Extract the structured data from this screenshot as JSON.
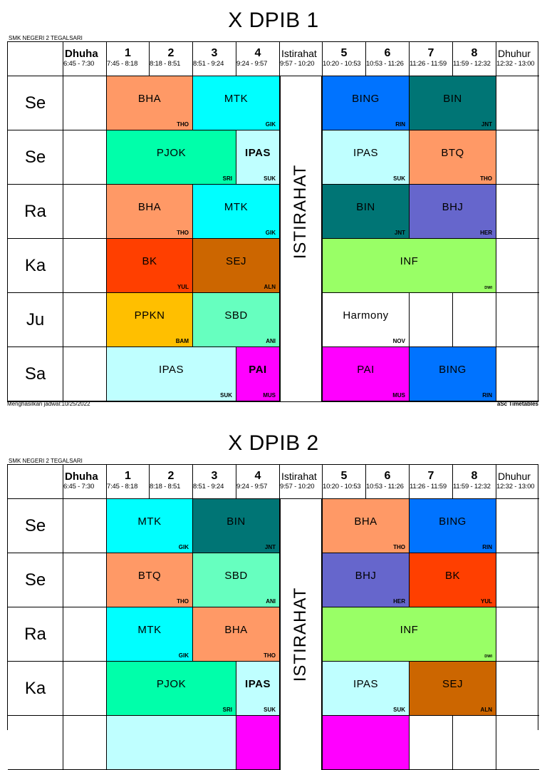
{
  "timetables": [
    {
      "title": "X DPIB 1",
      "school": "SMK NEGERI 2 TEGALSARI",
      "footer_left": "Menghasilkan jadwal:10/25/2022",
      "footer_right": "aSc Timetables",
      "break_label": "ISTIRAHAT",
      "periods": [
        {
          "label": "Dhuha",
          "time": "6:45 - 7:30"
        },
        {
          "label": "1",
          "time": "7:45 - 8:18"
        },
        {
          "label": "2",
          "time": "8:18 - 8:51"
        },
        {
          "label": "3",
          "time": "8:51 - 9:24"
        },
        {
          "label": "4",
          "time": "9:24 - 9:57"
        },
        {
          "label": "Istirahat",
          "time": "9:57 - 10:20"
        },
        {
          "label": "5",
          "time": "10:20 - 10:53"
        },
        {
          "label": "6",
          "time": "10:53 - 11:26"
        },
        {
          "label": "7",
          "time": "11:26 - 11:59"
        },
        {
          "label": "8",
          "time": "11:59 - 12:32"
        },
        {
          "label": "Dhuhur",
          "time": "12:32 - 13:00"
        }
      ],
      "days": [
        "Se",
        "Se",
        "Ra",
        "Ka",
        "Ju",
        "Sa"
      ],
      "lessons": [
        {
          "day": 0,
          "start": 1,
          "span": 2,
          "subject": "BHA",
          "teacher": "THO",
          "color": "#FF9966"
        },
        {
          "day": 0,
          "start": 3,
          "span": 2,
          "subject": "MTK",
          "teacher": "GIK",
          "color": "#00FFFF"
        },
        {
          "day": 0,
          "start": 6,
          "span": 2,
          "subject": "BING",
          "teacher": "RIN",
          "color": "#0073FF"
        },
        {
          "day": 0,
          "start": 8,
          "span": 2,
          "subject": "BIN",
          "teacher": "JNT",
          "color": "#007575"
        },
        {
          "day": 1,
          "start": 1,
          "span": 3,
          "subject": "PJOK",
          "teacher": "SRI",
          "color": "#00FFAA"
        },
        {
          "day": 1,
          "start": 4,
          "span": 1,
          "subject": "IPAS",
          "teacher": "SUK",
          "color": "#BFFFFF",
          "bold": true
        },
        {
          "day": 1,
          "start": 6,
          "span": 2,
          "subject": "IPAS",
          "teacher": "SUK",
          "color": "#BFFFFF"
        },
        {
          "day": 1,
          "start": 8,
          "span": 2,
          "subject": "BTQ",
          "teacher": "THO",
          "color": "#FF9966"
        },
        {
          "day": 2,
          "start": 1,
          "span": 2,
          "subject": "BHA",
          "teacher": "THO",
          "color": "#FF9966"
        },
        {
          "day": 2,
          "start": 3,
          "span": 2,
          "subject": "MTK",
          "teacher": "GIK",
          "color": "#00FFFF"
        },
        {
          "day": 2,
          "start": 6,
          "span": 2,
          "subject": "BIN",
          "teacher": "JNT",
          "color": "#007575"
        },
        {
          "day": 2,
          "start": 8,
          "span": 2,
          "subject": "BHJ",
          "teacher": "HER",
          "color": "#6666CC"
        },
        {
          "day": 3,
          "start": 1,
          "span": 2,
          "subject": "BK",
          "teacher": "YUL",
          "color": "#FF3F00"
        },
        {
          "day": 3,
          "start": 3,
          "span": 2,
          "subject": "SEJ",
          "teacher": "ALN",
          "color": "#CC6600"
        },
        {
          "day": 3,
          "start": 6,
          "span": 4,
          "subject": "INF",
          "teacher": "DWI",
          "color": "#99FF66",
          "tiny": true
        },
        {
          "day": 4,
          "start": 1,
          "span": 2,
          "subject": "PPKN",
          "teacher": "BAM",
          "color": "#FFBF00"
        },
        {
          "day": 4,
          "start": 3,
          "span": 2,
          "subject": "SBD",
          "teacher": "ANI",
          "color": "#66FFBF"
        },
        {
          "day": 4,
          "start": 6,
          "span": 2,
          "subject": "Harmony",
          "teacher": "NOV",
          "color": "#FFFFFF"
        },
        {
          "day": 5,
          "start": 1,
          "span": 3,
          "subject": "IPAS",
          "teacher": "SUK",
          "color": "#BFFFFF"
        },
        {
          "day": 5,
          "start": 4,
          "span": 1,
          "subject": "PAI",
          "teacher": "MUS",
          "color": "#FF00FF",
          "bold": true
        },
        {
          "day": 5,
          "start": 6,
          "span": 2,
          "subject": "PAI",
          "teacher": "MUS",
          "color": "#FF00FF"
        },
        {
          "day": 5,
          "start": 8,
          "span": 2,
          "subject": "BING",
          "teacher": "RIN",
          "color": "#0073FF"
        }
      ]
    },
    {
      "title": "X DPIB 2",
      "school": "SMK NEGERI 2 TEGALSARI",
      "break_label": "ISTIRAHAT",
      "periods": [
        {
          "label": "Dhuha",
          "time": "6:45 - 7:30"
        },
        {
          "label": "1",
          "time": "7:45 - 8:18"
        },
        {
          "label": "2",
          "time": "8:18 - 8:51"
        },
        {
          "label": "3",
          "time": "8:51 - 9:24"
        },
        {
          "label": "4",
          "time": "9:24 - 9:57"
        },
        {
          "label": "Istirahat",
          "time": "9:57 - 10:20"
        },
        {
          "label": "5",
          "time": "10:20 - 10:53"
        },
        {
          "label": "6",
          "time": "10:53 - 11:26"
        },
        {
          "label": "7",
          "time": "11:26 - 11:59"
        },
        {
          "label": "8",
          "time": "11:59 - 12:32"
        },
        {
          "label": "Dhuhur",
          "time": "12:32 - 13:00"
        }
      ],
      "days": [
        "Se",
        "Se",
        "Ra",
        "Ka",
        ""
      ],
      "lessons": [
        {
          "day": 0,
          "start": 1,
          "span": 2,
          "subject": "MTK",
          "teacher": "GIK",
          "color": "#00FFFF"
        },
        {
          "day": 0,
          "start": 3,
          "span": 2,
          "subject": "BIN",
          "teacher": "JNT",
          "color": "#007575"
        },
        {
          "day": 0,
          "start": 6,
          "span": 2,
          "subject": "BHA",
          "teacher": "THO",
          "color": "#FF9966"
        },
        {
          "day": 0,
          "start": 8,
          "span": 2,
          "subject": "BING",
          "teacher": "RIN",
          "color": "#0073FF"
        },
        {
          "day": 1,
          "start": 1,
          "span": 2,
          "subject": "BTQ",
          "teacher": "THO",
          "color": "#FF9966"
        },
        {
          "day": 1,
          "start": 3,
          "span": 2,
          "subject": "SBD",
          "teacher": "ANI",
          "color": "#66FFBF"
        },
        {
          "day": 1,
          "start": 6,
          "span": 2,
          "subject": "BHJ",
          "teacher": "HER",
          "color": "#6666CC"
        },
        {
          "day": 1,
          "start": 8,
          "span": 2,
          "subject": "BK",
          "teacher": "YUL",
          "color": "#FF3F00"
        },
        {
          "day": 2,
          "start": 1,
          "span": 2,
          "subject": "MTK",
          "teacher": "GIK",
          "color": "#00FFFF"
        },
        {
          "day": 2,
          "start": 3,
          "span": 2,
          "subject": "BHA",
          "teacher": "THO",
          "color": "#FF9966"
        },
        {
          "day": 2,
          "start": 6,
          "span": 4,
          "subject": "INF",
          "teacher": "DWI",
          "color": "#99FF66",
          "tiny": true
        },
        {
          "day": 3,
          "start": 1,
          "span": 3,
          "subject": "PJOK",
          "teacher": "SRI",
          "color": "#00FFAA"
        },
        {
          "day": 3,
          "start": 4,
          "span": 1,
          "subject": "IPAS",
          "teacher": "SUK",
          "color": "#BFFFFF",
          "bold": true
        },
        {
          "day": 3,
          "start": 6,
          "span": 2,
          "subject": "IPAS",
          "teacher": "SUK",
          "color": "#BFFFFF"
        },
        {
          "day": 3,
          "start": 8,
          "span": 2,
          "subject": "SEJ",
          "teacher": "ALN",
          "color": "#CC6600"
        },
        {
          "day": 4,
          "start": 1,
          "span": 3,
          "subject": "",
          "teacher": "",
          "color": "#BFFFFF"
        },
        {
          "day": 4,
          "start": 4,
          "span": 1,
          "subject": "",
          "teacher": "",
          "color": "#FF00FF"
        },
        {
          "day": 4,
          "start": 6,
          "span": 2,
          "subject": "",
          "teacher": "",
          "color": "#FF00FF"
        }
      ]
    }
  ]
}
